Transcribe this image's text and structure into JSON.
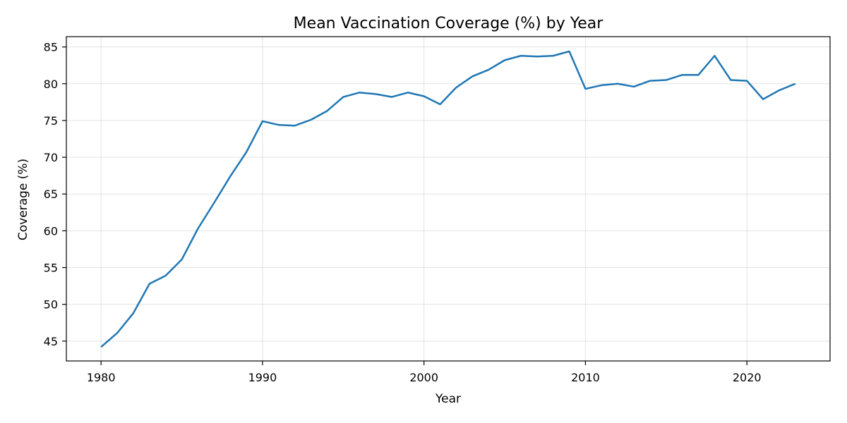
{
  "chart_data": {
    "type": "line",
    "title": "Mean Vaccination Coverage (%) by Year",
    "xlabel": "Year",
    "ylabel": "Coverage (%)",
    "xlim": [
      1977.85,
      2025.15
    ],
    "ylim": [
      42.3,
      86.4
    ],
    "x_ticks": [
      1980,
      1990,
      2000,
      2010,
      2020
    ],
    "y_ticks": [
      45,
      50,
      55,
      60,
      65,
      70,
      75,
      80,
      85
    ],
    "grid": true,
    "line_color": "#1f77b4",
    "series": [
      {
        "x": [
          1980,
          1981,
          1982,
          1983,
          1984,
          1985,
          1986,
          1987,
          1988,
          1989,
          1990,
          1991,
          1992,
          1993,
          1994,
          1995,
          1996,
          1997,
          1998,
          1999,
          2000,
          2001,
          2002,
          2003,
          2004,
          2005,
          2006,
          2007,
          2008,
          2009,
          2010,
          2011,
          2012,
          2013,
          2014,
          2015,
          2016,
          2017,
          2018,
          2019,
          2020,
          2021,
          2022,
          2023
        ],
        "values": [
          44.2,
          46.1,
          48.8,
          52.8,
          53.9,
          56.1,
          60.3,
          63.8,
          67.4,
          70.7,
          74.9,
          74.4,
          74.3,
          75.1,
          76.3,
          78.2,
          78.8,
          78.6,
          78.2,
          78.8,
          78.3,
          77.2,
          79.5,
          81.0,
          81.9,
          83.2,
          83.8,
          83.7,
          83.8,
          84.4,
          79.3,
          79.8,
          80.0,
          79.6,
          80.4,
          80.5,
          81.2,
          81.2,
          83.8,
          80.5,
          80.4,
          77.9,
          79.1,
          80.0
        ]
      }
    ]
  }
}
